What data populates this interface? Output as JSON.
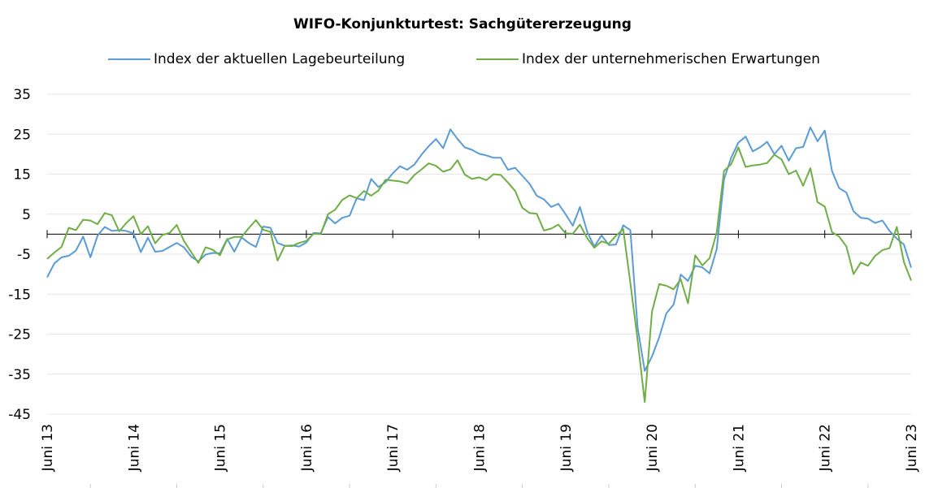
{
  "chart_data": {
    "type": "line",
    "title": "WIFO-Konjunkturtest: Sachgütererzeugung",
    "xlabel": "",
    "ylabel": "",
    "ylim": [
      -45,
      35
    ],
    "yticks": [
      35,
      25,
      15,
      5,
      -5,
      -15,
      -25,
      -35,
      -45
    ],
    "xticks": [
      "Juni 13",
      "Juni 14",
      "Juni 15",
      "Juni 16",
      "Juni 17",
      "Juni 18",
      "Juni 19",
      "Juni 20",
      "Juni 21",
      "Juni 22",
      "Juni 23"
    ],
    "x_start": "2013-06",
    "x_end": "2023-06",
    "grid": true,
    "legend": "top",
    "colors": {
      "lage": "#5b9bd5",
      "erwartungen": "#70ad47",
      "gridline": "#e6e6e6",
      "zeroline": "#000000"
    },
    "series": [
      {
        "name": "Index der aktuellen Lagebeurteilung",
        "values": [
          -10.8,
          -7.3,
          -5.8,
          -5.4,
          -4.1,
          -0.6,
          -5.8,
          -0.4,
          1.8,
          0.8,
          1.0,
          0.8,
          0.2,
          -4.5,
          -0.9,
          -4.4,
          -4.2,
          -3.2,
          -2.2,
          -3.3,
          -5.6,
          -6.8,
          -5.1,
          -4.7,
          -4.8,
          -1.2,
          -4.4,
          -0.8,
          -2.2,
          -3.2,
          1.9,
          1.6,
          -2.2,
          -2.9,
          -2.8,
          -3.1,
          -2.1,
          0.3,
          0.2,
          4.3,
          2.7,
          4.1,
          4.6,
          9.0,
          8.5,
          13.8,
          11.8,
          13.0,
          15.2,
          17.0,
          16.1,
          17.4,
          19.9,
          22.0,
          23.8,
          21.5,
          26.2,
          23.8,
          21.7,
          21.1,
          20.1,
          19.7,
          19.1,
          19.1,
          16.1,
          16.6,
          14.6,
          12.6,
          9.6,
          8.7,
          6.8,
          7.6,
          5.0,
          2.1,
          6.8,
          0.6,
          -3.1,
          -0.3,
          -2.7,
          -2.6,
          2.2,
          1.0,
          -23.3,
          -34.2,
          -30.6,
          -25.8,
          -19.8,
          -17.6,
          -10.1,
          -11.7,
          -7.9,
          -8.3,
          -9.8,
          -3.7,
          13.7,
          19.1,
          22.9,
          24.4,
          20.7,
          21.7,
          23.1,
          20.0,
          22.1,
          18.4,
          21.5,
          21.8,
          26.7,
          23.2,
          25.9,
          15.8,
          11.5,
          10.4,
          5.7,
          4.1,
          3.9,
          2.8,
          3.4,
          0.8,
          -1.1,
          -2.6,
          -8.4
        ]
      },
      {
        "name": "Index der unternehmerischen Erwartungen",
        "values": [
          -6.2,
          -4.6,
          -3.2,
          1.6,
          1.0,
          3.6,
          3.4,
          2.5,
          5.3,
          4.7,
          0.7,
          2.8,
          4.5,
          0.0,
          2.0,
          -2.3,
          -0.2,
          0.3,
          2.3,
          -1.7,
          -4.5,
          -7.2,
          -3.3,
          -3.9,
          -5.3,
          -1.3,
          -0.7,
          -0.7,
          1.5,
          3.5,
          1.1,
          0.6,
          -6.6,
          -2.9,
          -3.0,
          -2.2,
          -1.7,
          0.1,
          0.0,
          5.0,
          6.1,
          8.6,
          9.7,
          9.0,
          10.8,
          9.6,
          10.9,
          13.6,
          13.4,
          13.2,
          12.7,
          14.8,
          16.2,
          17.7,
          17.1,
          15.6,
          16.2,
          18.5,
          14.9,
          13.8,
          14.2,
          13.5,
          15.0,
          14.8,
          12.9,
          10.8,
          6.6,
          5.3,
          5.1,
          0.9,
          1.4,
          2.4,
          0.2,
          0.1,
          2.4,
          -1.0,
          -3.4,
          -1.8,
          -2.4,
          -0.4,
          1.3,
          -12.2,
          -26.4,
          -42.0,
          -19.4,
          -12.5,
          -12.9,
          -13.8,
          -11.3,
          -17.3,
          -5.3,
          -7.8,
          -6.0,
          0.5,
          15.8,
          17.5,
          21.7,
          16.8,
          17.2,
          17.4,
          17.8,
          19.9,
          18.7,
          15.0,
          15.9,
          12.1,
          16.5,
          8.0,
          6.9,
          0.5,
          -0.6,
          -3.1,
          -10.0,
          -7.1,
          -7.9,
          -5.4,
          -4.0,
          -3.5,
          1.8,
          -7.0,
          -11.6
        ]
      }
    ]
  }
}
